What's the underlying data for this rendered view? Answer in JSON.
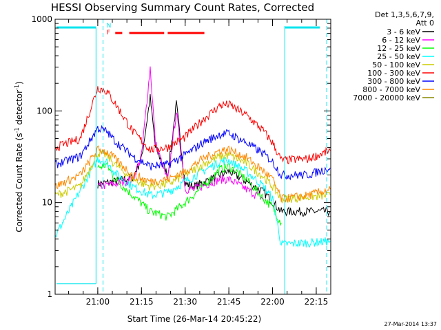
{
  "chart_data": {
    "type": "line",
    "title": "HESSI Observing Summary Count Rates, Corrected",
    "xlabel": "Start Time (26-Mar-14 20:45:22)",
    "ylabel_main": "Corrected Count Rate (s",
    "ylabel_sup1": "-1",
    "ylabel_mid": " detector",
    "ylabel_sup2": "-1",
    "ylabel_end": ")",
    "yscale": "log",
    "xlim": [
      20.756,
      22.333
    ],
    "ylim": [
      1,
      1000
    ],
    "x_ticks": [
      {
        "v": 21.0,
        "label": "21:00"
      },
      {
        "v": 21.25,
        "label": "21:15"
      },
      {
        "v": 21.5,
        "label": "21:30"
      },
      {
        "v": 21.75,
        "label": "21:45"
      },
      {
        "v": 22.0,
        "label": "22:00"
      },
      {
        "v": 22.25,
        "label": "22:15"
      }
    ],
    "y_ticks": [
      {
        "v": 1,
        "label": "1"
      },
      {
        "v": 10,
        "label": "10"
      },
      {
        "v": 100,
        "label": "100"
      },
      {
        "v": 1000,
        "label": "1000"
      }
    ],
    "legend": {
      "header1": "Det 1,3,5,6,7,9,",
      "header2": "Att 0",
      "placement": "right"
    },
    "series": [
      {
        "name": "3 - 6 keV",
        "color": "#000000",
        "points": [
          [
            21.0,
            16
          ],
          [
            21.1,
            17
          ],
          [
            21.2,
            19
          ],
          [
            21.25,
            30
          ],
          [
            21.3,
            140
          ],
          [
            21.33,
            40
          ],
          [
            21.4,
            20
          ],
          [
            21.45,
            120
          ],
          [
            21.5,
            16
          ],
          [
            21.55,
            15
          ],
          [
            21.7,
            20
          ],
          [
            21.75,
            22
          ],
          [
            21.85,
            17
          ],
          [
            21.95,
            13
          ],
          [
            22.05,
            8
          ],
          [
            22.33,
            8
          ]
        ]
      },
      {
        "name": "6 - 12 keV",
        "color": "#ff00ff",
        "points": [
          [
            21.0,
            15
          ],
          [
            21.1,
            16
          ],
          [
            21.2,
            18
          ],
          [
            21.25,
            32
          ],
          [
            21.3,
            300
          ],
          [
            21.33,
            45
          ],
          [
            21.4,
            17
          ],
          [
            21.45,
            100
          ],
          [
            21.5,
            14
          ],
          [
            21.55,
            14
          ],
          [
            21.7,
            18
          ],
          [
            21.75,
            18
          ],
          [
            21.85,
            14
          ],
          [
            21.95,
            11
          ]
        ]
      },
      {
        "name": "12 - 25 keV",
        "color": "#00ff00",
        "points": [
          [
            21.0,
            24
          ],
          [
            21.05,
            26
          ],
          [
            21.1,
            18
          ],
          [
            21.2,
            12
          ],
          [
            21.3,
            8
          ],
          [
            21.4,
            7
          ],
          [
            21.5,
            10
          ],
          [
            21.6,
            15
          ],
          [
            21.7,
            23
          ],
          [
            21.75,
            25
          ],
          [
            21.85,
            18
          ],
          [
            21.95,
            11
          ],
          [
            22.0,
            9
          ],
          [
            22.05,
            6
          ]
        ]
      },
      {
        "name": "25 - 50 keV",
        "color": "#00ffff",
        "points": [
          [
            20.756,
            4.5
          ],
          [
            20.756,
            4.3
          ],
          [
            21.0,
            30
          ],
          [
            21.05,
            28
          ],
          [
            21.1,
            21
          ],
          [
            21.2,
            15
          ],
          [
            21.3,
            12
          ],
          [
            21.4,
            13
          ],
          [
            21.5,
            17
          ],
          [
            21.6,
            22
          ],
          [
            21.7,
            28
          ],
          [
            21.75,
            29
          ],
          [
            21.85,
            22
          ],
          [
            21.95,
            15
          ],
          [
            22.0,
            11
          ],
          [
            22.05,
            3.5
          ],
          [
            22.33,
            3.8
          ]
        ]
      },
      {
        "name": "50 - 100 keV",
        "color": "#cccc00",
        "points": [
          [
            20.756,
            12
          ],
          [
            20.9,
            15
          ],
          [
            21.0,
            35
          ],
          [
            21.05,
            33
          ],
          [
            21.1,
            26
          ],
          [
            21.2,
            18
          ],
          [
            21.3,
            15
          ],
          [
            21.4,
            16
          ],
          [
            21.5,
            20
          ],
          [
            21.6,
            26
          ],
          [
            21.7,
            32
          ],
          [
            21.75,
            33
          ],
          [
            21.85,
            27
          ],
          [
            21.95,
            19
          ],
          [
            22.0,
            15
          ],
          [
            22.05,
            11
          ],
          [
            22.33,
            12
          ]
        ]
      },
      {
        "name": "100 - 300 keV",
        "color": "#ff0000",
        "points": [
          [
            20.756,
            40
          ],
          [
            20.9,
            50
          ],
          [
            21.0,
            180
          ],
          [
            21.05,
            165
          ],
          [
            21.1,
            120
          ],
          [
            21.2,
            60
          ],
          [
            21.3,
            38
          ],
          [
            21.4,
            40
          ],
          [
            21.5,
            52
          ],
          [
            21.6,
            80
          ],
          [
            21.7,
            115
          ],
          [
            21.75,
            118
          ],
          [
            21.85,
            90
          ],
          [
            21.95,
            60
          ],
          [
            22.0,
            45
          ],
          [
            22.05,
            29
          ],
          [
            22.2,
            30
          ],
          [
            22.33,
            37
          ]
        ]
      },
      {
        "name": "300 - 800 keV",
        "color": "#0000ff",
        "points": [
          [
            20.756,
            26
          ],
          [
            20.9,
            32
          ],
          [
            21.0,
            65
          ],
          [
            21.05,
            60
          ],
          [
            21.1,
            47
          ],
          [
            21.2,
            32
          ],
          [
            21.3,
            25
          ],
          [
            21.4,
            26
          ],
          [
            21.5,
            33
          ],
          [
            21.6,
            45
          ],
          [
            21.7,
            56
          ],
          [
            21.75,
            57
          ],
          [
            21.85,
            45
          ],
          [
            21.95,
            34
          ],
          [
            22.0,
            28
          ],
          [
            22.05,
            20
          ],
          [
            22.2,
            20
          ],
          [
            22.33,
            24
          ]
        ]
      },
      {
        "name": "800 - 7000 keV",
        "color": "#ff8800",
        "points": [
          [
            20.756,
            15
          ],
          [
            20.9,
            20
          ],
          [
            21.0,
            38
          ],
          [
            21.05,
            36
          ],
          [
            21.1,
            30
          ],
          [
            21.2,
            20
          ],
          [
            21.3,
            17
          ],
          [
            21.4,
            18
          ],
          [
            21.5,
            22
          ],
          [
            21.6,
            30
          ],
          [
            21.7,
            37
          ],
          [
            21.75,
            38
          ],
          [
            21.85,
            31
          ],
          [
            21.95,
            22
          ],
          [
            22.0,
            18
          ],
          [
            22.05,
            11
          ],
          [
            22.2,
            12
          ],
          [
            22.33,
            14
          ]
        ]
      },
      {
        "name": "7000 - 20000 keV",
        "color": "#888800",
        "points": []
      }
    ],
    "markers": {
      "cyan_color": "#00e5ee",
      "flare_color": "#ff0000",
      "N_label": "N",
      "F_label": "F"
    }
  },
  "footer": "27-Mar-2014 13:37"
}
